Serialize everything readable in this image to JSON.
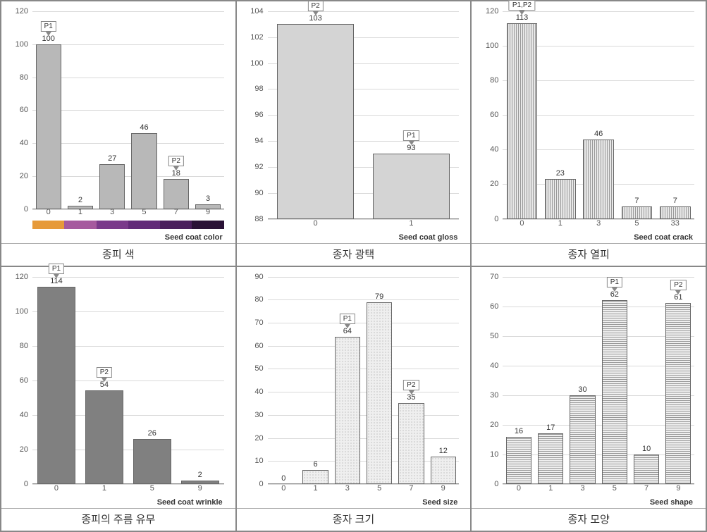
{
  "grid": {
    "cols": 3,
    "rows": 2
  },
  "colors": {
    "grid_line": "#d9d9d9",
    "axis_text": "#555555",
    "border": "#888888",
    "bar_border": "#666666",
    "label_text": "#333333"
  },
  "charts": [
    {
      "id": "seed-coat-color",
      "type": "bar",
      "xlabel": "Seed coat color",
      "caption": "종피 색",
      "categories": [
        "0",
        "1",
        "3",
        "5",
        "7",
        "9"
      ],
      "values": [
        100,
        2,
        27,
        46,
        18,
        3
      ],
      "ylim": [
        0,
        120
      ],
      "ytick_step": 20,
      "fill_class": "fill-solid-gray",
      "markers": [
        {
          "label": "P1",
          "cat_index": 0,
          "offset_above": 18
        },
        {
          "label": "P2",
          "cat_index": 4,
          "offset_above": 18
        }
      ],
      "colorbar": [
        "#e69a3a",
        "#a65a9e",
        "#7a3a8a",
        "#622a78",
        "#4a1f5c",
        "#2a1236"
      ]
    },
    {
      "id": "seed-coat-gloss",
      "type": "bar",
      "xlabel": "Seed coat gloss",
      "caption": "종자 광택",
      "categories": [
        "0",
        "1"
      ],
      "values": [
        103,
        93
      ],
      "ylim": [
        88,
        104
      ],
      "ytick_step": 2,
      "fill_class": "fill-light-gray",
      "markers": [
        {
          "label": "P2",
          "cat_index": 0,
          "offset_above": 18
        },
        {
          "label": "P1",
          "cat_index": 1,
          "offset_above": 18
        }
      ]
    },
    {
      "id": "seed-coat-crack",
      "type": "bar",
      "xlabel": "Seed coat crack",
      "caption": "종자 열피",
      "categories": [
        "0",
        "1",
        "3",
        "5",
        "33"
      ],
      "values": [
        113,
        23,
        46,
        7,
        7
      ],
      "ylim": [
        0,
        120
      ],
      "ytick_step": 20,
      "fill_class": "fill-vlines",
      "markers": [
        {
          "label": "P1,P2",
          "cat_index": 0,
          "offset_above": 18
        }
      ]
    },
    {
      "id": "seed-coat-wrinkle",
      "type": "bar",
      "xlabel": "Seed coat wrinkle",
      "caption": "종피의 주름 유무",
      "categories": [
        "0",
        "1",
        "5",
        "9"
      ],
      "values": [
        114,
        54,
        26,
        2
      ],
      "ylim": [
        0,
        120
      ],
      "ytick_step": 20,
      "fill_class": "fill-dark-gray",
      "markers": [
        {
          "label": "P1",
          "cat_index": 0,
          "offset_above": 18
        },
        {
          "label": "P2",
          "cat_index": 1,
          "offset_above": 18
        }
      ]
    },
    {
      "id": "seed-size",
      "type": "bar",
      "xlabel": "Seed size",
      "caption": "종자 크기",
      "categories": [
        "0",
        "1",
        "3",
        "5",
        "7",
        "9"
      ],
      "values": [
        0,
        6,
        64,
        79,
        35,
        12
      ],
      "ylim": [
        0,
        90
      ],
      "ytick_step": 10,
      "fill_class": "fill-dots",
      "markers": [
        {
          "label": "P1",
          "cat_index": 2,
          "offset_above": 18
        },
        {
          "label": "P2",
          "cat_index": 4,
          "offset_above": 18
        }
      ]
    },
    {
      "id": "seed-shape",
      "type": "bar",
      "xlabel": "Seed shape",
      "caption": "종자 모양",
      "categories": [
        "0",
        "1",
        "3",
        "5",
        "7",
        "9"
      ],
      "values": [
        16,
        17,
        30,
        62,
        10,
        61
      ],
      "ylim": [
        0,
        70
      ],
      "ytick_step": 10,
      "fill_class": "fill-hlines",
      "markers": [
        {
          "label": "P1",
          "cat_index": 3,
          "offset_above": 18
        },
        {
          "label": "P2",
          "cat_index": 5,
          "offset_above": 18
        }
      ]
    }
  ]
}
